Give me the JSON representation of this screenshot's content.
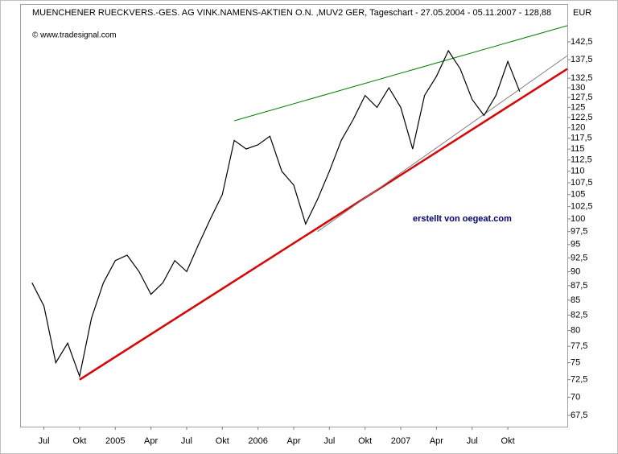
{
  "chart_data": {
    "type": "line",
    "title": "MUENCHENER RUECKVERS.-GES. AG VINK.NAMENS-AKTIEN O.N. ,MUV2 GER, Tageschart - 27.05.2004 - 05.11.2007 - 128,88",
    "source": "© www.tradesignal.com",
    "y_axis_label": "EUR",
    "annotation": "erstellt von oegeat.com",
    "log_scale": true,
    "x": [
      "2004-06",
      "2004-07",
      "2004-08",
      "2004-09",
      "2004-10",
      "2004-11",
      "2004-12",
      "2005-01",
      "2005-02",
      "2005-03",
      "2005-04",
      "2005-05",
      "2005-06",
      "2005-07",
      "2005-08",
      "2005-09",
      "2005-10",
      "2005-11",
      "2005-12",
      "2006-01",
      "2006-02",
      "2006-03",
      "2006-04",
      "2006-05",
      "2006-06",
      "2006-07",
      "2006-08",
      "2006-09",
      "2006-10",
      "2006-11",
      "2006-12",
      "2007-01",
      "2007-02",
      "2007-03",
      "2007-04",
      "2007-05",
      "2007-06",
      "2007-07",
      "2007-08",
      "2007-09",
      "2007-10",
      "2007-11"
    ],
    "series": [
      {
        "color": "#000000",
        "values": [
          88,
          84,
          75,
          78,
          73,
          82,
          88,
          92,
          93,
          90,
          86,
          88,
          92,
          90,
          95,
          100,
          105,
          117,
          115,
          116,
          118,
          110,
          107,
          99,
          104,
          110,
          117,
          122,
          128,
          125,
          130,
          125,
          115,
          128,
          133,
          140,
          135,
          127,
          123,
          128,
          137,
          129
        ]
      }
    ],
    "trendlines": [
      {
        "color": "#008000",
        "x": [
          "2005-11",
          "2008-03"
        ],
        "y": [
          121.7,
          147.2
        ]
      },
      {
        "color": "#e00000",
        "x": [
          "2004-10",
          "2008-03"
        ],
        "y": [
          72.5,
          135
        ]
      },
      {
        "color": "#808080",
        "x": [
          "2006-06",
          "2008-03"
        ],
        "y": [
          97.5,
          138.6
        ]
      }
    ],
    "xlim": [
      "2004-05",
      "2008-03"
    ],
    "xticks": [
      {
        "value": "2004-07",
        "label": "Jul"
      },
      {
        "value": "2004-10",
        "label": "Okt"
      },
      {
        "value": "2005-01",
        "label": "2005"
      },
      {
        "value": "2005-04",
        "label": "Apr"
      },
      {
        "value": "2005-07",
        "label": "Jul"
      },
      {
        "value": "2005-10",
        "label": "Okt"
      },
      {
        "value": "2006-01",
        "label": "2006"
      },
      {
        "value": "2006-04",
        "label": "Apr"
      },
      {
        "value": "2006-07",
        "label": "Jul"
      },
      {
        "value": "2006-10",
        "label": "Okt"
      },
      {
        "value": "2007-01",
        "label": "2007"
      },
      {
        "value": "2007-04",
        "label": "Apr"
      },
      {
        "value": "2007-07",
        "label": "Jul"
      },
      {
        "value": "2007-10",
        "label": "Okt"
      }
    ],
    "ylim": [
      66,
      153.7
    ],
    "yticks": [
      {
        "value": 67.5,
        "label": "67,5"
      },
      70,
      {
        "value": 72.5,
        "label": "72,5"
      },
      75,
      {
        "value": 77.5,
        "label": "77,5"
      },
      80,
      {
        "value": 82.5,
        "label": "82,5"
      },
      85,
      {
        "value": 87.5,
        "label": "87,5"
      },
      90,
      {
        "value": 92.5,
        "label": "92,5"
      },
      95,
      {
        "value": 97.5,
        "label": "97,5"
      },
      100,
      {
        "value": 102.5,
        "label": "102,5"
      },
      105,
      {
        "value": 107.5,
        "label": "107,5"
      },
      110,
      {
        "value": 112.5,
        "label": "112,5"
      },
      115,
      {
        "value": 117.5,
        "label": "117,5"
      },
      120,
      {
        "value": 122.5,
        "label": "122,5"
      },
      125,
      {
        "value": 127.5,
        "label": "127,5"
      },
      130,
      {
        "value": 132.5,
        "label": "132,5"
      },
      {
        "value": 137.5,
        "label": "137,5"
      },
      {
        "value": 142.5,
        "label": "142,5"
      }
    ]
  }
}
